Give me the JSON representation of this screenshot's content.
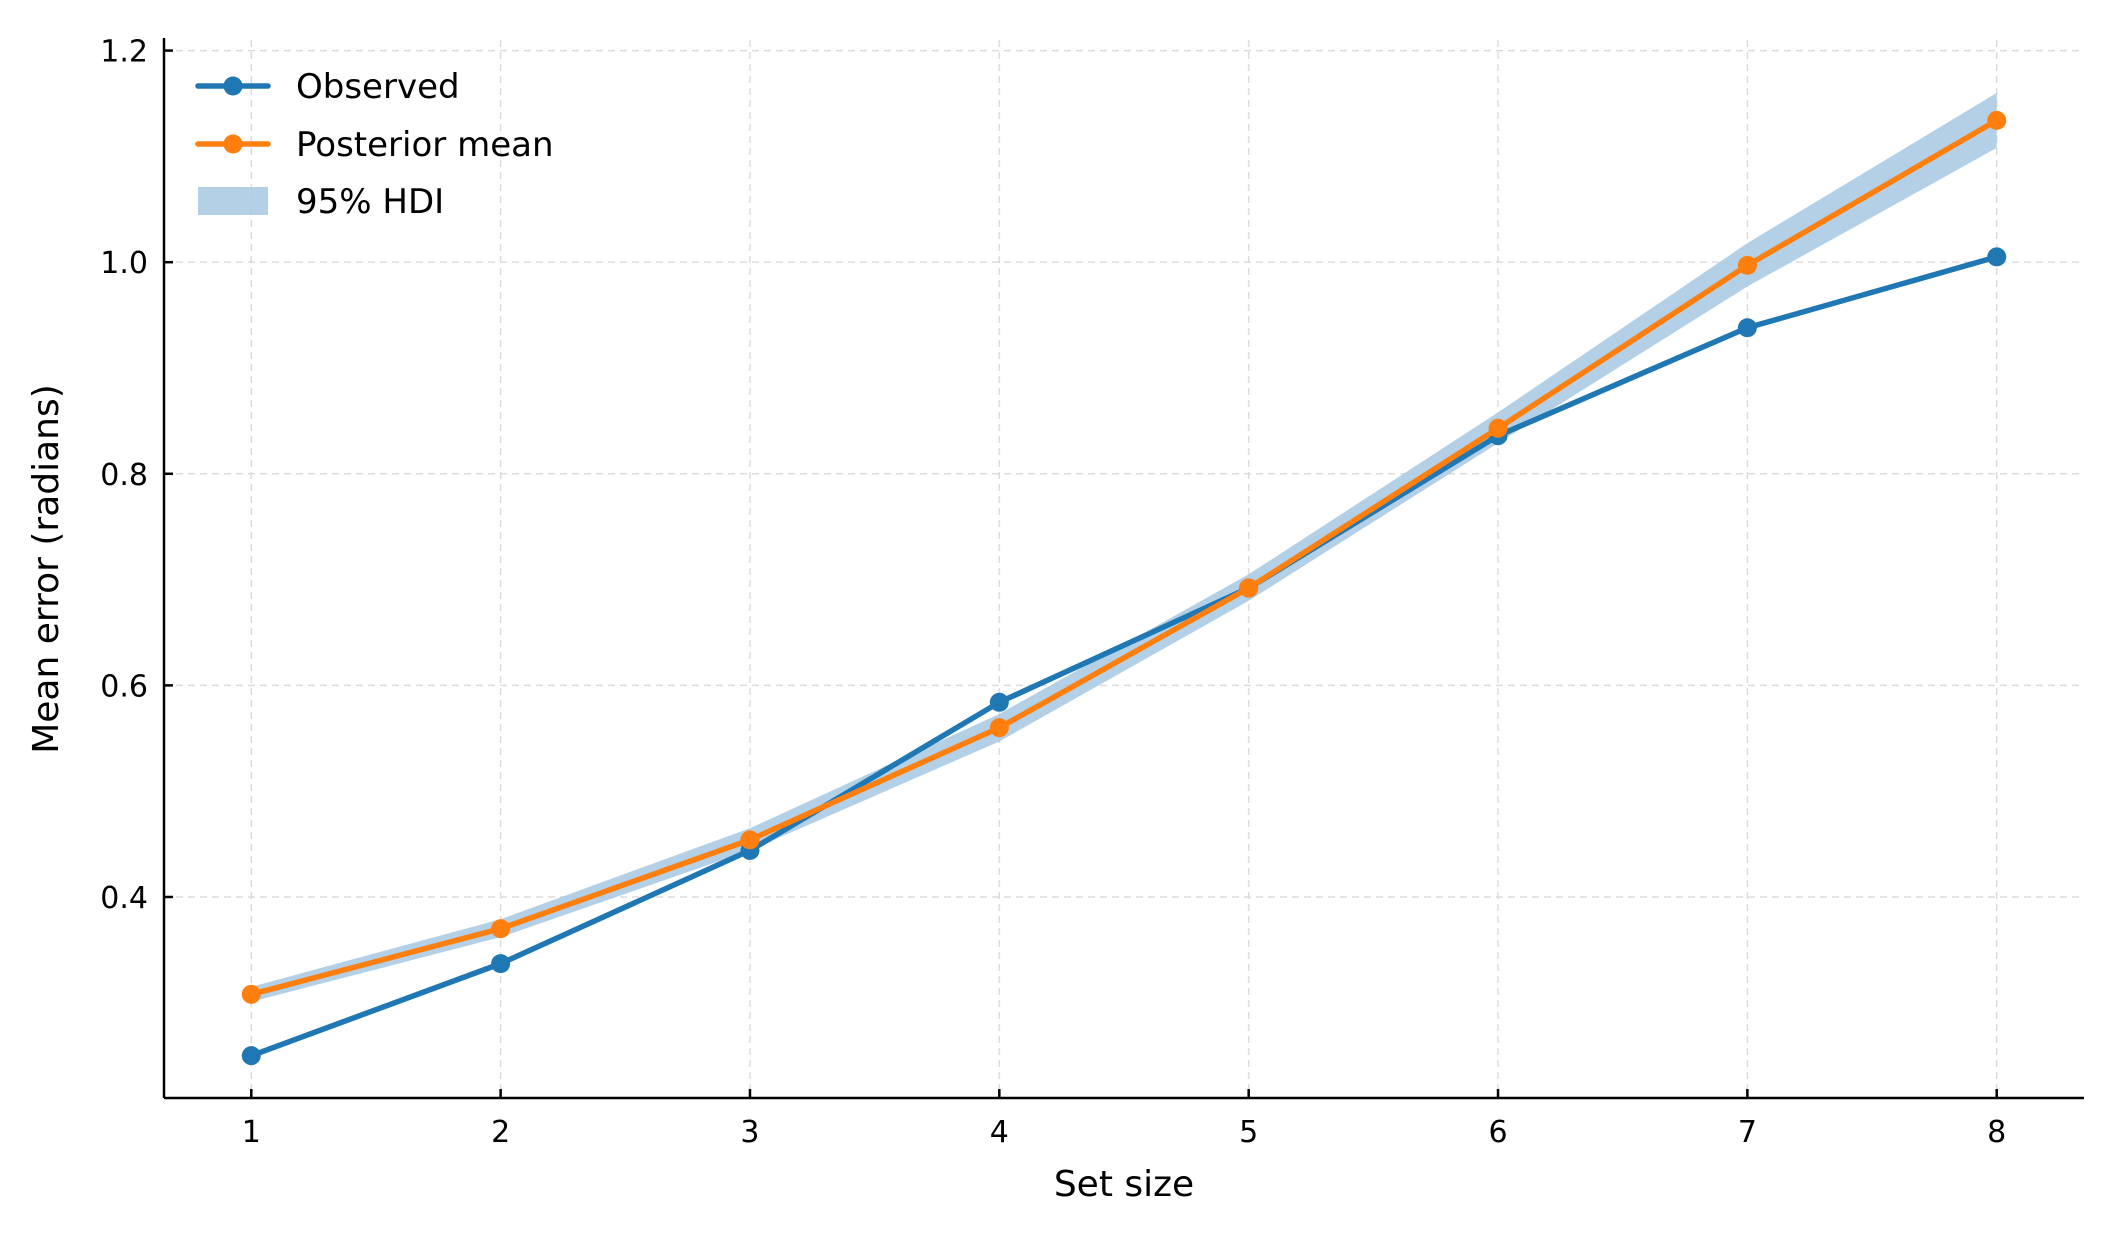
{
  "chart_data": {
    "type": "line",
    "xlabel": "Set size",
    "ylabel": "Mean error (radians)",
    "x": [
      1,
      2,
      3,
      4,
      5,
      6,
      7,
      8
    ],
    "xlim": [
      0.65,
      8.35
    ],
    "ylim": [
      0.21,
      1.21
    ],
    "xticks": [
      1,
      2,
      3,
      4,
      5,
      6,
      7,
      8
    ],
    "yticks": [
      0.4,
      0.6,
      0.8,
      1.0,
      1.2
    ],
    "ytick_labels": [
      "0.4",
      "0.6",
      "0.8",
      "1.0",
      "1.2"
    ],
    "grid": true,
    "legend_position": "top-left",
    "series": [
      {
        "name": "Observed",
        "color": "#1f77b4",
        "values": [
          0.25,
          0.337,
          0.444,
          0.584,
          0.692,
          0.836,
          0.938,
          1.005
        ]
      },
      {
        "name": "Posterior mean",
        "color": "#ff7f0e",
        "values": [
          0.308,
          0.37,
          0.454,
          0.56,
          0.692,
          0.843,
          0.997,
          1.134
        ]
      }
    ],
    "band": {
      "name": "95% HDI",
      "color": "#a6c8e3",
      "lower": [
        0.301,
        0.362,
        0.444,
        0.547,
        0.68,
        0.829,
        0.977,
        1.108
      ],
      "upper": [
        0.315,
        0.379,
        0.465,
        0.573,
        0.705,
        0.858,
        1.018,
        1.16
      ]
    }
  }
}
